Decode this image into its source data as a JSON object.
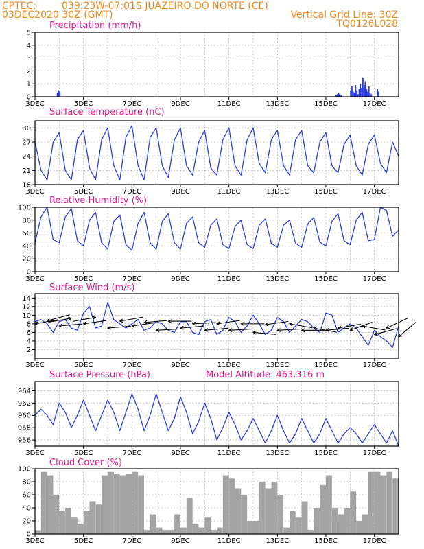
{
  "header": {
    "source": "CPTEC:",
    "location": "039:23W-07:01S  JUAZEIRO DO NORTE (CE)",
    "run": "03DEC2020 30Z (GMT)",
    "grid_line": "Vertical Grid Line: 30Z",
    "model": "TQ0126L028"
  },
  "date_ticks": [
    "3DEC",
    "5DEC",
    "7DEC",
    "9DEC",
    "11DEC",
    "13DEC",
    "15DEC",
    "17DEC"
  ],
  "colors": {
    "series": "#2b3de0",
    "title": "#e0178f",
    "header": "#f08a1c",
    "cloud": "#a4a4a4"
  },
  "chart_data": [
    {
      "type": "bar",
      "title": "Precipitation (mm/h)",
      "ylim": [
        0,
        5
      ],
      "yticks": [
        0,
        1,
        2,
        3,
        4,
        5
      ],
      "x_days": [
        0.9,
        0.95,
        1.0,
        12.4,
        12.45,
        12.5,
        12.55,
        12.6,
        13.0,
        13.05,
        13.1,
        13.15,
        13.2,
        13.25,
        13.3,
        13.35,
        13.4,
        13.45,
        13.5,
        13.55,
        13.6,
        13.65,
        13.7,
        13.75,
        13.8,
        13.85,
        14.1,
        14.15
      ],
      "values": [
        0.3,
        0.5,
        0.4,
        0.15,
        0.2,
        0.3,
        0.2,
        0.1,
        0.5,
        0.8,
        0.4,
        0.3,
        0.9,
        0.5,
        0.2,
        0.6,
        1.0,
        0.7,
        1.5,
        0.9,
        1.2,
        0.6,
        0.4,
        0.8,
        0.3,
        0.2,
        0.6,
        0.4
      ]
    },
    {
      "type": "line",
      "title": "Surface Temperature (nC)",
      "ylim": [
        18,
        31.5
      ],
      "yticks": [
        18,
        21,
        24,
        27,
        30
      ],
      "x_days": [
        0,
        0.25,
        0.5,
        0.75,
        1,
        1.25,
        1.5,
        1.75,
        2,
        2.25,
        2.5,
        2.75,
        3,
        3.25,
        3.5,
        3.75,
        4,
        4.25,
        4.5,
        4.75,
        5,
        5.25,
        5.5,
        5.75,
        6,
        6.25,
        6.5,
        6.75,
        7,
        7.25,
        7.5,
        7.75,
        8,
        8.25,
        8.5,
        8.75,
        9,
        9.25,
        9.5,
        9.75,
        10,
        10.25,
        10.5,
        10.75,
        11,
        11.25,
        11.5,
        11.75,
        12,
        12.25,
        12.5,
        12.75,
        13,
        13.25,
        13.5,
        13.75,
        14,
        14.25,
        14.5,
        14.75,
        15
      ],
      "values": [
        27,
        21,
        19,
        27,
        29,
        21,
        19,
        27.5,
        29.5,
        21.5,
        19,
        27.5,
        30,
        22,
        19,
        28,
        30.5,
        22,
        19,
        28,
        30,
        22,
        19.5,
        27.5,
        30,
        22,
        20,
        27,
        29.5,
        21.5,
        20,
        27.5,
        30,
        22,
        20,
        27.5,
        30,
        22.5,
        20.5,
        27.5,
        29.5,
        22,
        20,
        27.5,
        29.5,
        22,
        20.5,
        27,
        29,
        22,
        20.5,
        26.5,
        28.5,
        22,
        20,
        26.5,
        28.5,
        22.5,
        20.5,
        27,
        24
      ]
    },
    {
      "type": "line",
      "title": "Relative Humidity (%)",
      "ylim": [
        0,
        100
      ],
      "yticks": [
        0,
        20,
        40,
        60,
        80,
        100
      ],
      "x_days": [
        0,
        0.25,
        0.5,
        0.75,
        1,
        1.25,
        1.5,
        1.75,
        2,
        2.25,
        2.5,
        2.75,
        3,
        3.25,
        3.5,
        3.75,
        4,
        4.25,
        4.5,
        4.75,
        5,
        5.25,
        5.5,
        5.75,
        6,
        6.25,
        6.5,
        6.75,
        7,
        7.25,
        7.5,
        7.75,
        8,
        8.25,
        8.5,
        8.75,
        9,
        9.25,
        9.5,
        9.75,
        10,
        10.25,
        10.5,
        10.75,
        11,
        11.25,
        11.5,
        11.75,
        12,
        12.25,
        12.5,
        12.75,
        13,
        13.25,
        13.5,
        13.75,
        14,
        14.25,
        14.5,
        14.75,
        15
      ],
      "values": [
        45,
        85,
        100,
        50,
        45,
        85,
        98,
        48,
        40,
        80,
        92,
        45,
        35,
        78,
        88,
        42,
        33,
        75,
        92,
        45,
        35,
        78,
        90,
        45,
        35,
        75,
        85,
        45,
        38,
        72,
        82,
        42,
        36,
        70,
        80,
        42,
        36,
        72,
        82,
        44,
        38,
        72,
        80,
        44,
        38,
        74,
        84,
        46,
        40,
        78,
        90,
        48,
        42,
        80,
        92,
        48,
        50,
        100,
        95,
        55,
        65
      ]
    },
    {
      "type": "line",
      "title": "Surface Wind (m/s)",
      "ylim": [
        0,
        15
      ],
      "yticks": [
        2,
        4,
        6,
        8,
        10,
        12,
        14
      ],
      "x_days": [
        0,
        0.25,
        0.5,
        0.75,
        1,
        1.25,
        1.5,
        1.75,
        2,
        2.25,
        2.5,
        2.75,
        3,
        3.25,
        3.5,
        3.75,
        4,
        4.25,
        4.5,
        4.75,
        5,
        5.25,
        5.5,
        5.75,
        6,
        6.25,
        6.5,
        6.75,
        7,
        7.25,
        7.5,
        7.75,
        8,
        8.25,
        8.5,
        8.75,
        9,
        9.25,
        9.5,
        9.75,
        10,
        10.25,
        10.5,
        10.75,
        11,
        11.25,
        11.5,
        11.75,
        12,
        12.25,
        12.5,
        12.75,
        13,
        13.25,
        13.5,
        13.75,
        14,
        14.25,
        14.5,
        14.75,
        15
      ],
      "values": [
        8.5,
        9,
        8,
        6,
        8.5,
        9,
        7,
        6.5,
        10.5,
        12,
        7,
        7.5,
        13,
        9,
        8,
        7,
        8,
        9,
        6.5,
        7,
        8.5,
        8,
        6.5,
        6,
        8.5,
        8.5,
        6,
        5.5,
        8.5,
        9,
        5.5,
        6.5,
        9.5,
        8.5,
        6,
        7.5,
        10,
        8,
        5.5,
        6.5,
        9.5,
        8.5,
        6,
        7.5,
        9,
        8.5,
        7,
        6,
        10.5,
        10,
        6,
        7,
        8,
        7,
        5,
        3,
        6.5,
        5,
        4,
        2.5,
        7.5
      ],
      "barbs_x_days": [
        0,
        0.5,
        1,
        1.5,
        2,
        2.5,
        3,
        3.5,
        4,
        4.5,
        5,
        5.5,
        6,
        6.5,
        7,
        7.5,
        8,
        8.5,
        9,
        9.5,
        10,
        10.5,
        11,
        11.5,
        12,
        12.5,
        13,
        13.5,
        14,
        14.5,
        15
      ],
      "barbs_y": [
        8,
        8.7,
        7.5,
        9.3,
        8,
        9.5,
        7,
        8.6,
        7.5,
        8.3,
        6.5,
        8.6,
        7,
        8,
        6.5,
        8,
        6.5,
        8,
        6,
        7.8,
        6.5,
        8,
        6.5,
        7,
        6.5,
        7,
        6.5,
        7.5,
        5.5,
        7,
        5
      ],
      "barbs_angle_deg": [
        10,
        15,
        5,
        190,
        8,
        190,
        5,
        10,
        8,
        5,
        3,
        0,
        5,
        3,
        5,
        8,
        3,
        0,
        355,
        8,
        3,
        350,
        0,
        350,
        5,
        10,
        20,
        350,
        15,
        25,
        40
      ]
    },
    {
      "type": "line",
      "title": "Surface Pressure (hPa)",
      "annotation": "Model Altitude: 463.316 m",
      "ylim": [
        955,
        965.5
      ],
      "yticks": [
        956,
        958,
        960,
        962,
        964
      ],
      "x_days": [
        0,
        0.25,
        0.5,
        0.75,
        1,
        1.25,
        1.5,
        1.75,
        2,
        2.25,
        2.5,
        2.75,
        3,
        3.25,
        3.5,
        3.75,
        4,
        4.25,
        4.5,
        4.75,
        5,
        5.25,
        5.5,
        5.75,
        6,
        6.25,
        6.5,
        6.75,
        7,
        7.25,
        7.5,
        7.75,
        8,
        8.25,
        8.5,
        8.75,
        9,
        9.25,
        9.5,
        9.75,
        10,
        10.25,
        10.5,
        10.75,
        11,
        11.25,
        11.5,
        11.75,
        12,
        12.25,
        12.5,
        12.75,
        13,
        13.25,
        13.5,
        13.75,
        14,
        14.25,
        14.5,
        14.75,
        15
      ],
      "values": [
        960,
        961,
        960,
        958.5,
        962,
        960.5,
        958,
        960,
        962.5,
        960,
        957.5,
        960,
        962.5,
        960.5,
        957.5,
        960.5,
        963.5,
        961,
        957.5,
        960,
        963.5,
        960.5,
        957.5,
        959.5,
        963,
        960.5,
        957,
        959,
        962,
        959.5,
        956,
        958,
        960.5,
        958.5,
        956,
        957.5,
        959.5,
        957.5,
        955.5,
        957.5,
        960,
        957.5,
        955.5,
        957,
        959.5,
        957.5,
        955.5,
        957,
        959.5,
        957.5,
        955.5,
        957,
        958,
        957,
        955.5,
        957,
        958.5,
        957,
        955.5,
        957.5,
        955
      ]
    },
    {
      "type": "area",
      "title": "Cloud Cover (%)",
      "ylim": [
        0,
        100
      ],
      "yticks": [
        0,
        20,
        40,
        60,
        80,
        100
      ],
      "x_days": [
        0,
        0.25,
        0.5,
        0.75,
        1,
        1.25,
        1.5,
        1.75,
        2,
        2.25,
        2.5,
        2.75,
        3,
        3.25,
        3.5,
        3.75,
        4,
        4.25,
        4.5,
        4.75,
        5,
        5.25,
        5.5,
        5.75,
        6,
        6.25,
        6.5,
        6.75,
        7,
        7.25,
        7.5,
        7.75,
        8,
        8.25,
        8.5,
        8.75,
        9,
        9.25,
        9.5,
        9.75,
        10,
        10.25,
        10.5,
        10.75,
        11,
        11.25,
        11.5,
        11.75,
        12,
        12.25,
        12.5,
        12.75,
        13,
        13.25,
        13.5,
        13.75,
        14,
        14.25,
        14.5,
        14.75,
        15
      ],
      "values": [
        5,
        95,
        90,
        60,
        35,
        40,
        25,
        15,
        35,
        50,
        45,
        90,
        95,
        92,
        90,
        92,
        95,
        90,
        5,
        30,
        10,
        5,
        5,
        30,
        10,
        55,
        15,
        10,
        25,
        5,
        10,
        90,
        85,
        70,
        60,
        20,
        20,
        80,
        70,
        80,
        60,
        10,
        35,
        25,
        50,
        5,
        40,
        75,
        90,
        40,
        30,
        40,
        65,
        20,
        30,
        95,
        95,
        90,
        95,
        85,
        70
      ]
    }
  ]
}
